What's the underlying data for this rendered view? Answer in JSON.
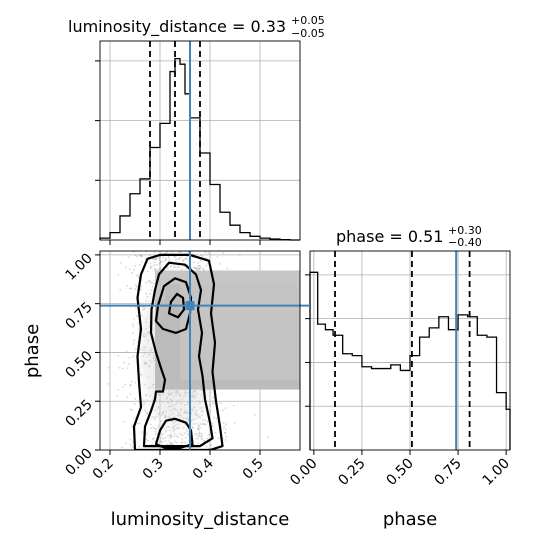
{
  "chart_data": {
    "type": "corner",
    "parameters": [
      "luminosity_distance",
      "phase"
    ],
    "truth": {
      "luminosity_distance": 0.36,
      "phase": 0.74
    },
    "truth_color": "#4682b4",
    "panels": [
      {
        "id": "hist_luminosity_distance",
        "type": "histogram",
        "title": {
          "name": "luminosity_distance",
          "median": "0.33",
          "plus": "+0.05",
          "minus": "−0.05"
        },
        "xlim": [
          0.18,
          0.58
        ],
        "bin_edges": [
          0.18,
          0.2,
          0.22,
          0.24,
          0.26,
          0.28,
          0.3,
          0.32,
          0.33,
          0.34,
          0.35,
          0.36,
          0.38,
          0.4,
          0.42,
          0.44,
          0.46,
          0.48,
          0.5,
          0.52,
          0.54,
          0.56,
          0.58
        ],
        "counts": [
          0.01,
          0.04,
          0.13,
          0.25,
          0.33,
          0.5,
          0.63,
          0.91,
          0.98,
          0.95,
          0.79,
          0.66,
          0.47,
          0.3,
          0.15,
          0.08,
          0.04,
          0.02,
          0.01,
          0.005,
          0.002,
          0
        ],
        "quantiles": [
          0.28,
          0.33,
          0.38
        ]
      },
      {
        "id": "hist_phase",
        "type": "histogram",
        "title": {
          "name": "phase",
          "median": "0.51",
          "plus": "+0.30",
          "minus": "−0.40"
        },
        "xlim": [
          -0.02,
          1.02
        ],
        "xticks": [
          "0.00",
          "0.25",
          "0.50",
          "0.75",
          "1.00"
        ],
        "xlabel": "phase",
        "bin_edges": [
          -0.02,
          0.02,
          0.06,
          0.1,
          0.15,
          0.2,
          0.25,
          0.3,
          0.35,
          0.4,
          0.45,
          0.5,
          0.55,
          0.6,
          0.65,
          0.7,
          0.75,
          0.8,
          0.85,
          0.9,
          0.95,
          1.0,
          1.02
        ],
        "counts": [
          0.96,
          0.68,
          0.65,
          0.62,
          0.52,
          0.51,
          0.45,
          0.44,
          0.44,
          0.46,
          0.43,
          0.51,
          0.61,
          0.66,
          0.72,
          0.65,
          0.73,
          0.72,
          0.62,
          0.61,
          0.31,
          0.22
        ],
        "quantiles": [
          0.11,
          0.51,
          0.81
        ]
      },
      {
        "id": "joint",
        "type": "2d-histogram-contour",
        "xlabel": "luminosity_distance",
        "ylabel": "phase",
        "xlim": [
          0.18,
          0.58
        ],
        "ylim": [
          0.0,
          1.02
        ],
        "xticks": [
          "0.2",
          "0.3",
          "0.4",
          "0.5"
        ],
        "yticks": [
          "0.00",
          "0.25",
          "0.50",
          "0.75",
          "1.00"
        ]
      }
    ]
  }
}
